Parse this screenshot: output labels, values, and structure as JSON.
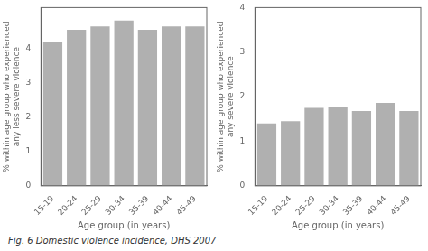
{
  "chart_data": [
    {
      "type": "bar",
      "categories": [
        "15-19",
        "20-24",
        "25-29",
        "30-34",
        "35-39",
        "40-44",
        "45-49"
      ],
      "values": [
        4.2,
        4.55,
        4.65,
        4.82,
        4.55,
        4.65,
        4.65
      ],
      "color": "#b0b0b0",
      "xlabel": "Age group (in years)",
      "ylabel": "% within age group who experienced\nany less severe violence",
      "ylim": [
        0,
        5.2
      ],
      "yticks": [
        0,
        1,
        2,
        3,
        4
      ],
      "grid": false
    },
    {
      "type": "bar",
      "categories": [
        "15-19",
        "20-24",
        "25-29",
        "30-34",
        "35-39",
        "40-44",
        "45-49"
      ],
      "values": [
        1.4,
        1.45,
        1.75,
        1.78,
        1.68,
        1.86,
        1.68
      ],
      "color": "#b0b0b0",
      "xlabel": "Age group (in years)",
      "ylabel": "% within age group who experienced\nany severe violence",
      "ylim": [
        0,
        4.0
      ],
      "yticks": [
        0,
        1,
        2,
        3,
        4
      ],
      "grid": false
    }
  ],
  "caption": "Fig. 6  Domestic violence incidence, DHS 2007"
}
